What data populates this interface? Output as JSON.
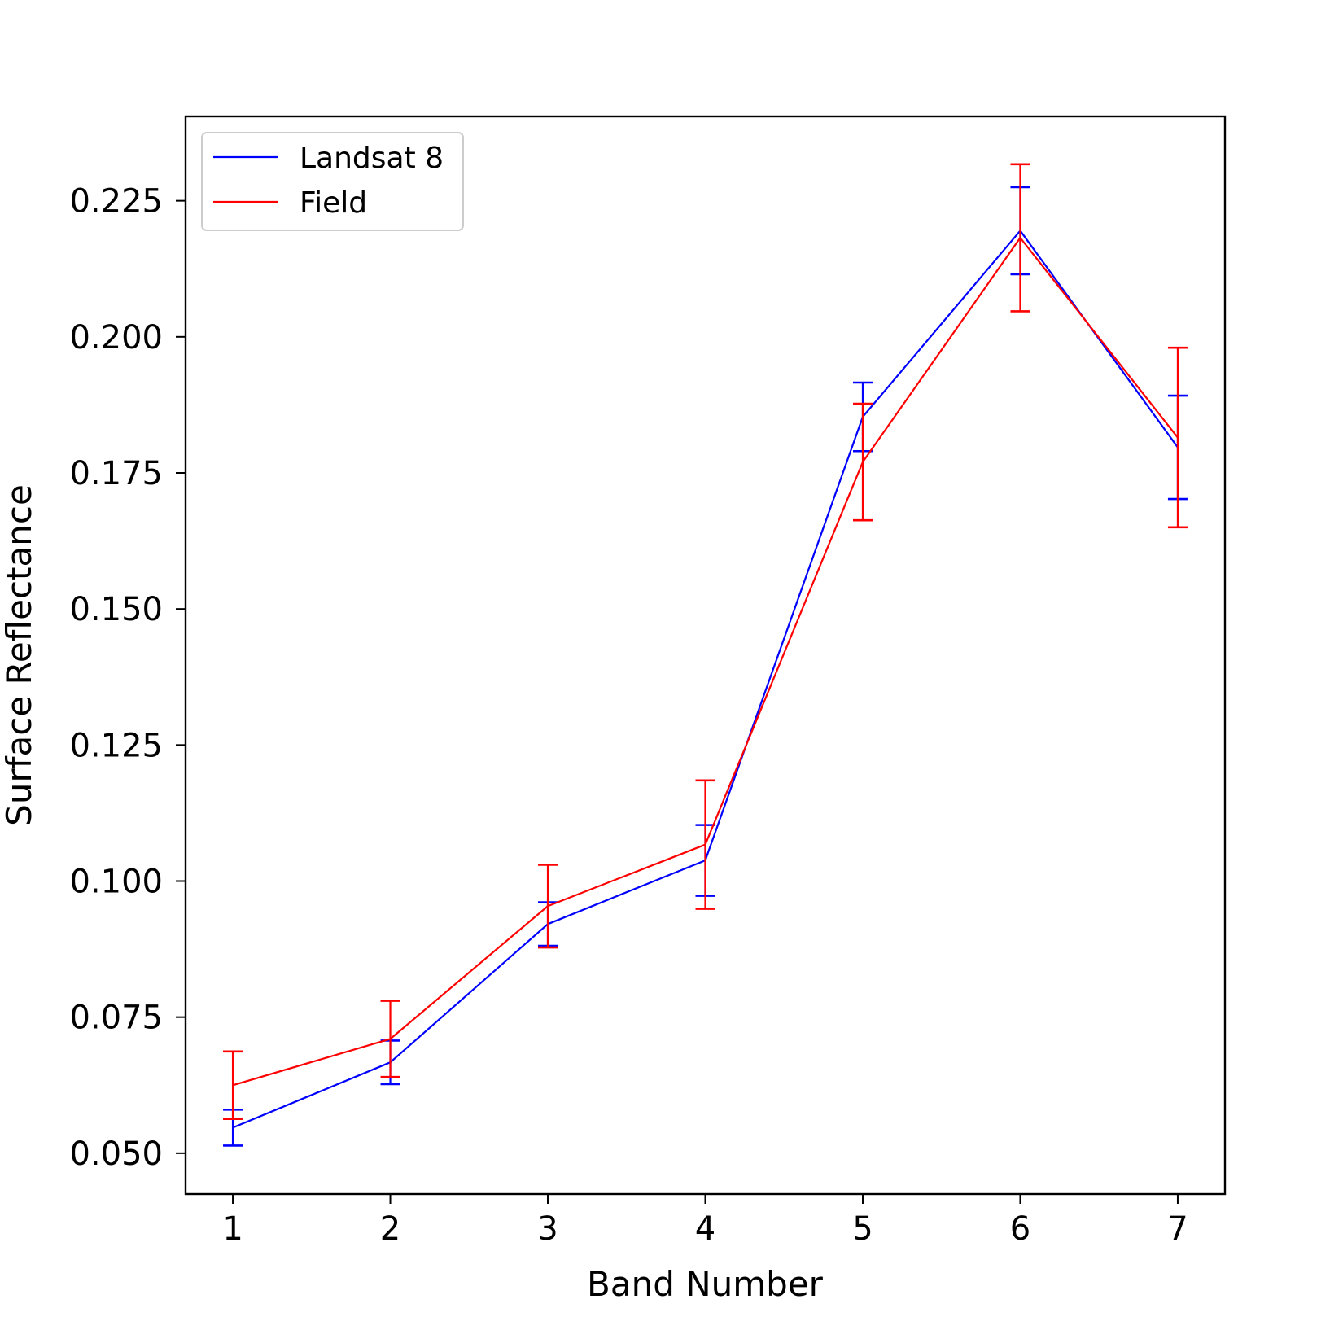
{
  "chart_data": {
    "type": "line",
    "title": "",
    "xlabel": "Band Number",
    "ylabel": "Surface Reflectance",
    "x": [
      1,
      2,
      3,
      4,
      5,
      6,
      7
    ],
    "x_ticks": [
      "1",
      "2",
      "3",
      "4",
      "5",
      "6",
      "7"
    ],
    "xlim": [
      0.7,
      7.3
    ],
    "ylim": [
      0.0425,
      0.2405
    ],
    "y_ticks": [
      "0.050",
      "0.075",
      "0.100",
      "0.125",
      "0.150",
      "0.175",
      "0.200",
      "0.225"
    ],
    "grid": false,
    "legend_position": "top-left",
    "series": [
      {
        "name": "Landsat 8",
        "color": "#0000ff",
        "values": [
          0.0547,
          0.0667,
          0.0921,
          0.1038,
          0.1853,
          0.2195,
          0.1797
        ],
        "error": [
          0.0033,
          0.004,
          0.004,
          0.0065,
          0.0063,
          0.008,
          0.0095
        ]
      },
      {
        "name": "Field",
        "color": "#ff0000",
        "values": [
          0.0625,
          0.071,
          0.0954,
          0.1067,
          0.177,
          0.2182,
          0.1815
        ],
        "error": [
          0.0062,
          0.007,
          0.0076,
          0.0118,
          0.0107,
          0.0135,
          0.0165
        ]
      }
    ]
  }
}
